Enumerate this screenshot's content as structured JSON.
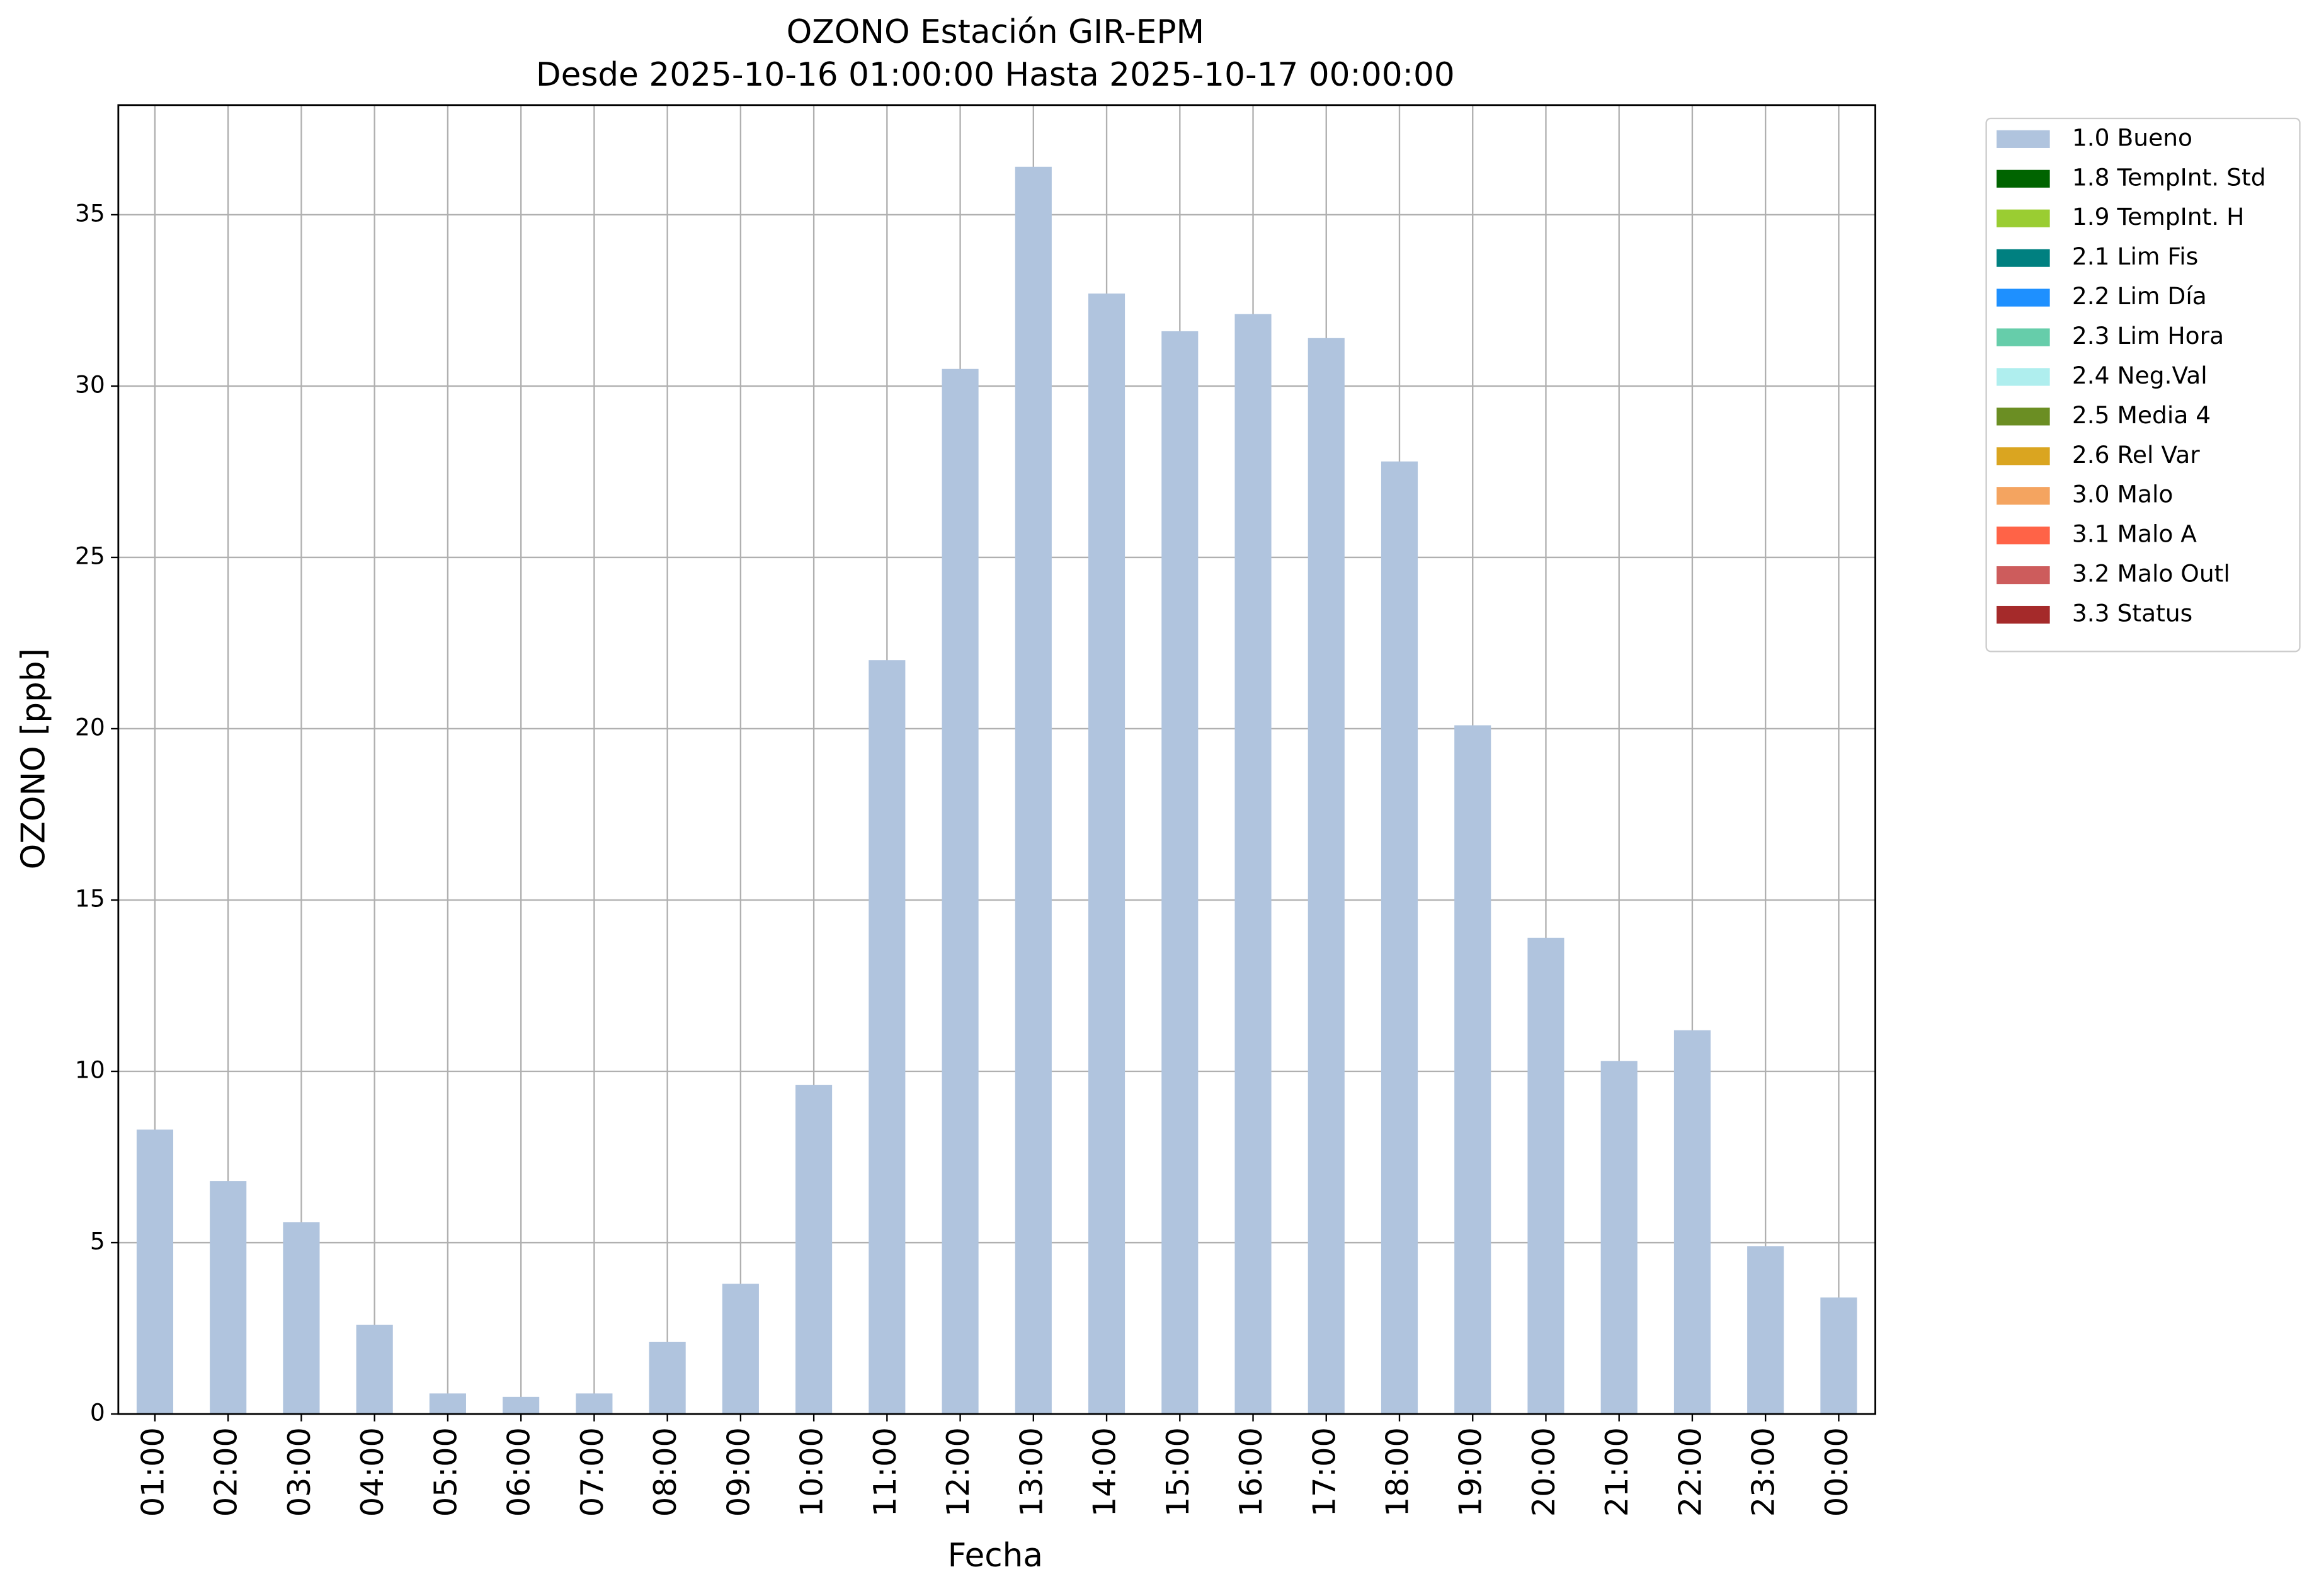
{
  "chart_data": {
    "type": "bar",
    "title": "OZONO Estación GIR-EPM",
    "subtitle": "Desde 2025-10-16 01:00:00 Hasta 2025-10-17 00:00:00",
    "x_label": "Fecha",
    "y_label": "OZONO [ppb]",
    "categories": [
      "01:00",
      "02:00",
      "03:00",
      "04:00",
      "05:00",
      "06:00",
      "07:00",
      "08:00",
      "09:00",
      "10:00",
      "11:00",
      "12:00",
      "13:00",
      "14:00",
      "15:00",
      "16:00",
      "17:00",
      "18:00",
      "19:00",
      "20:00",
      "21:00",
      "22:00",
      "23:00",
      "00:00"
    ],
    "series": [
      {
        "name": "1.0 Bueno",
        "color": "#b0c4de",
        "values": [
          8.3,
          6.8,
          5.6,
          2.6,
          0.6,
          0.5,
          0.6,
          2.1,
          3.8,
          9.6,
          22.0,
          30.5,
          36.4,
          32.7,
          31.6,
          32.1,
          31.4,
          27.8,
          20.1,
          13.9,
          10.3,
          11.2,
          4.9,
          3.4
        ]
      },
      {
        "name": "1.8 TempInt. Std",
        "color": "#006400"
      },
      {
        "name": "1.9 TempInt. H",
        "color": "#9acd32"
      },
      {
        "name": "2.1 Lim Fis",
        "color": "#008080"
      },
      {
        "name": "2.2 Lim Día",
        "color": "#1e90ff"
      },
      {
        "name": "2.3 Lim Hora",
        "color": "#66cdaa"
      },
      {
        "name": "2.4 Neg.Val",
        "color": "#afeeee"
      },
      {
        "name": "2.5 Media 4",
        "color": "#6b8e23"
      },
      {
        "name": "2.6 Rel Var",
        "color": "#daa520"
      },
      {
        "name": "3.0 Malo",
        "color": "#f4a460"
      },
      {
        "name": "3.1 Malo A",
        "color": "#ff6347"
      },
      {
        "name": "3.2 Malo Outl",
        "color": "#cd5c5c"
      },
      {
        "name": "3.3 Status",
        "color": "#a52a2a"
      }
    ],
    "stacked": true,
    "ylim": [
      0,
      38.2
    ],
    "yticks": [
      0,
      5,
      10,
      15,
      20,
      25,
      30,
      35
    ],
    "grid": true,
    "legend": "outside-upper-right"
  }
}
